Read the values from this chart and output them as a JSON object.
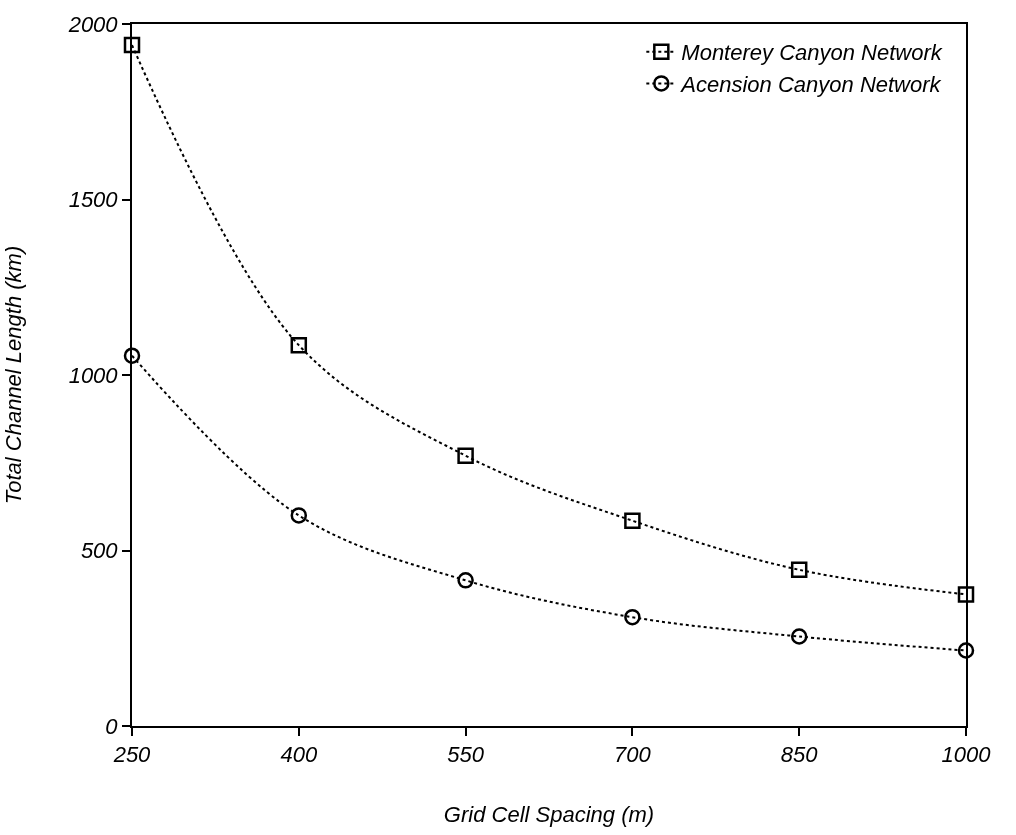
{
  "chart_data": {
    "type": "line",
    "xlabel": "Grid Cell Spacing (m)",
    "ylabel": "Total Channel Length (km)",
    "x": [
      250,
      400,
      550,
      700,
      850,
      1000
    ],
    "series": [
      {
        "name": "Monterey Canyon Network",
        "color": "#000000",
        "marker": "square",
        "values": [
          1940,
          1085,
          770,
          585,
          445,
          375
        ]
      },
      {
        "name": "Acension Canyon Network",
        "color": "#000000",
        "marker": "circle",
        "values": [
          1055,
          600,
          415,
          310,
          255,
          215
        ]
      }
    ],
    "line_style": "dotted",
    "xlim": [
      250,
      1000
    ],
    "xticks": [
      250,
      400,
      550,
      700,
      850,
      1000
    ],
    "ylim": [
      0,
      2000
    ],
    "yticks": [
      0,
      500,
      1000,
      1500,
      2000
    ],
    "legend": "top right"
  }
}
